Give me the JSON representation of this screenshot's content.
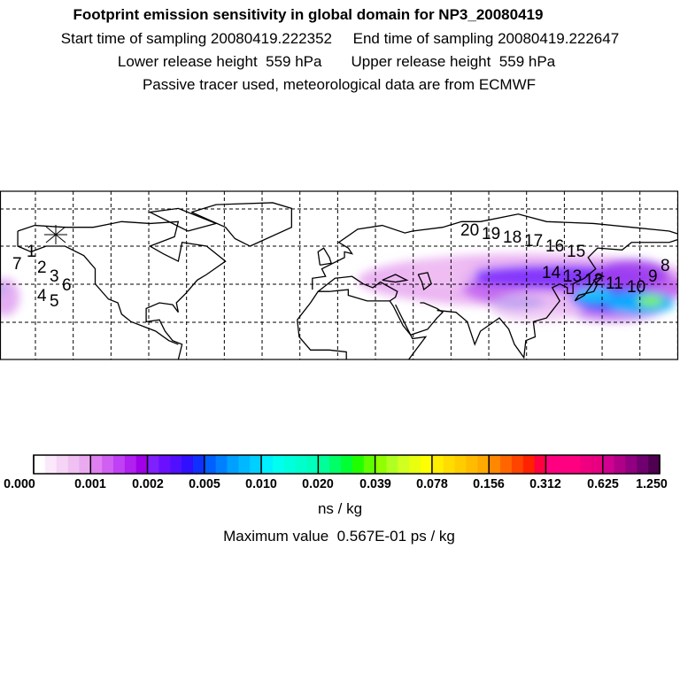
{
  "header": {
    "title": "Footprint emission sensitivity in global domain for NP3_20080419",
    "line2": "Start time of sampling 20080419.222352     End time of sampling 20080419.222647",
    "line3": "Lower release height  559 hPa       Upper release height  559 hPa",
    "line4": "Passive tracer used, meteorological data are from ECMWF"
  },
  "map": {
    "trajectory_labels": [
      "1",
      "7",
      "2",
      "3",
      "6",
      "4",
      "5",
      "20",
      "19",
      "18",
      "17",
      "16",
      "15",
      "14",
      "13",
      "12",
      "11",
      "10",
      "9",
      "8"
    ]
  },
  "colorbar": {
    "ticks": [
      "0.000",
      "0.001",
      "0.002",
      "0.005",
      "0.010",
      "0.020",
      "0.039",
      "0.078",
      "0.156",
      "0.312",
      "0.625",
      "1.250"
    ],
    "colors": [
      [
        "#ffffff",
        "#fbe8fb",
        "#f6d4f6",
        "#f0c0f2",
        "#eaaaf0"
      ],
      [
        "#e080f0",
        "#d060f2",
        "#c040f5",
        "#b020f0",
        "#a000e8"
      ],
      [
        "#8020ff",
        "#6a10ff",
        "#5010ff",
        "#3010ff",
        "#1030ff"
      ],
      [
        "#0060ff",
        "#0080ff",
        "#00a0ff",
        "#00b8ff",
        "#00d0ff"
      ],
      [
        "#00f0ff",
        "#00ffee",
        "#00ffdd",
        "#00ffcc",
        "#00ffbb"
      ],
      [
        "#00ff99",
        "#00ff66",
        "#00ff33",
        "#20ff00",
        "#60ff00"
      ],
      [
        "#90ff00",
        "#b0ff20",
        "#d0ff20",
        "#e8ff10",
        "#ffff00"
      ],
      [
        "#ffee00",
        "#ffdd00",
        "#ffcc00",
        "#ffbb00",
        "#ffaa00"
      ],
      [
        "#ff8800",
        "#ff6600",
        "#ff4400",
        "#ff2200",
        "#ff0040"
      ],
      [
        "#ff0080",
        "#ff0080",
        "#ff0080",
        "#f00080",
        "#e80080"
      ],
      [
        "#d00090",
        "#b00088",
        "#900080",
        "#700070",
        "#500050"
      ]
    ],
    "unit": "ns / kg",
    "max_value_text": "Maximum value  0.567E-01 ps / kg"
  }
}
